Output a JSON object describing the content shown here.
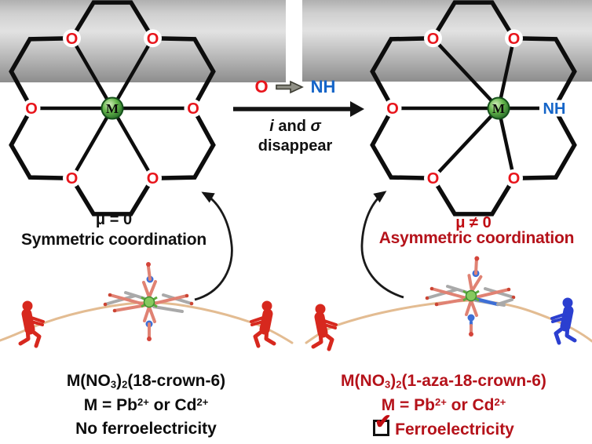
{
  "figure": {
    "colors": {
      "oxygen_red": "#e8141b",
      "nitrogen_blue": "#1565c8",
      "metal_green_edge": "#1c5f23",
      "heading_dark_red": "#b5121a",
      "mu_red": "#c00c12",
      "text_black": "#0d0d0d",
      "rope_tan": "#e3bc92",
      "figure_red": "#d7281e",
      "figure_blue": "#2b3fd0"
    },
    "transition": {
      "from": "O",
      "to": "NH",
      "note_line1": [
        {
          "t": "i",
          "style": "i"
        },
        {
          "t": " and ",
          "style": ""
        },
        {
          "t": "σ",
          "style": "i"
        }
      ],
      "note_line2": "disappear"
    },
    "left_crown": {
      "metal": "M",
      "atoms": [
        "O",
        "O",
        "O",
        "O",
        "O",
        "O"
      ],
      "mu": "μ = 0",
      "caption": "Symmetric coordination"
    },
    "right_crown": {
      "metal": "M",
      "atoms": [
        "NH",
        "O",
        "O",
        "O",
        "O",
        "O"
      ],
      "mu": "μ ≠ 0",
      "caption": "Asymmetric coordination"
    },
    "left_result": {
      "formula": [
        {
          "t": "M(NO",
          "style": ""
        },
        {
          "t": "3",
          "style": "sub"
        },
        {
          "t": ")",
          "style": ""
        },
        {
          "t": "2",
          "style": "sub"
        },
        {
          "t": "(18-crown-6)",
          "style": ""
        }
      ],
      "metals": [
        {
          "t": "M = Pb",
          "style": ""
        },
        {
          "t": "2+",
          "style": "sup"
        },
        {
          "t": " or Cd",
          "style": ""
        },
        {
          "t": "2+",
          "style": "sup"
        }
      ],
      "verdict": "No ferroelectricity"
    },
    "right_result": {
      "formula": [
        {
          "t": "M(NO",
          "style": ""
        },
        {
          "t": "3",
          "style": "sub"
        },
        {
          "t": ")",
          "style": ""
        },
        {
          "t": "2",
          "style": "sub"
        },
        {
          "t": "(1-aza-18-crown-6)",
          "style": ""
        }
      ],
      "metals": [
        {
          "t": "M = Pb",
          "style": ""
        },
        {
          "t": "2+",
          "style": "sup"
        },
        {
          "t": " or Cd",
          "style": ""
        },
        {
          "t": "2+",
          "style": "sup"
        }
      ],
      "verdict": "Ferroelectricity",
      "check_glyph": "✔"
    }
  }
}
